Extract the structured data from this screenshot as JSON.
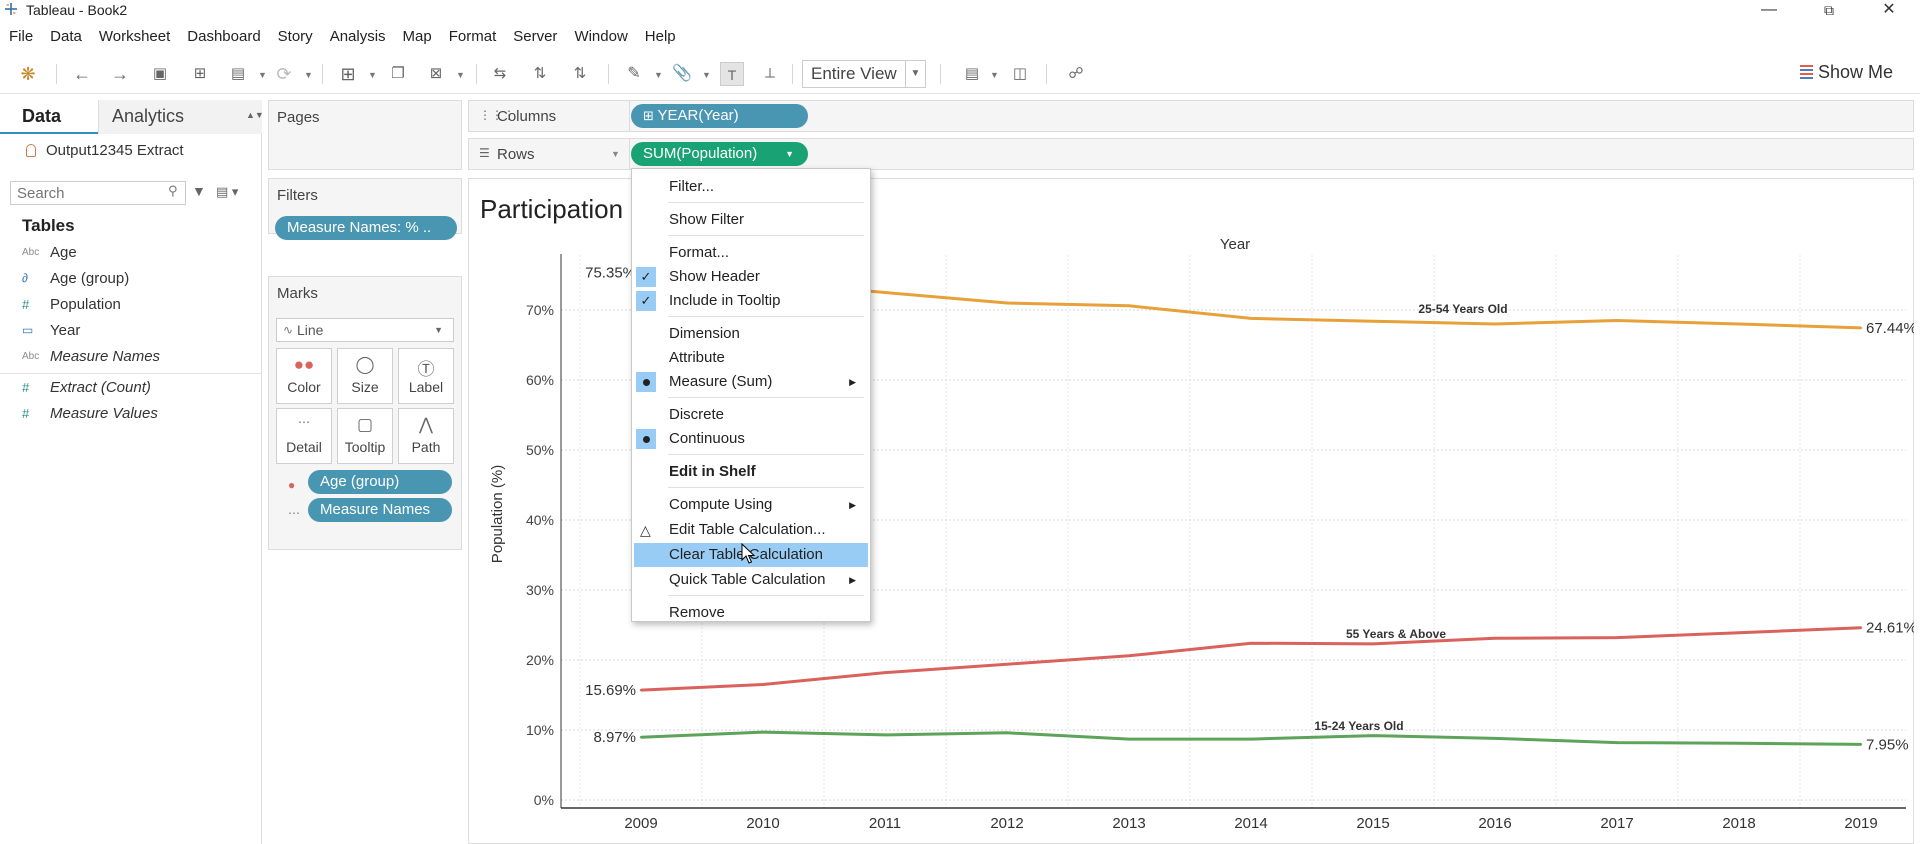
{
  "window": {
    "title": "Tableau - Book2",
    "min_icon": "minimize-icon",
    "max_icon": "restore-icon",
    "close_icon": "close-icon"
  },
  "menu": [
    "File",
    "Data",
    "Worksheet",
    "Dashboard",
    "Story",
    "Analysis",
    "Map",
    "Format",
    "Server",
    "Window",
    "Help"
  ],
  "toolbar": {
    "fit": "Entire View",
    "show_me": "Show Me"
  },
  "data_pane": {
    "tab_data": "Data",
    "tab_analytics": "Analytics",
    "datasource": "Output12345 Extract",
    "search_placeholder": "Search",
    "tables_header": "Tables",
    "fields": [
      {
        "icon": "Abc",
        "name": "Age",
        "italic": false
      },
      {
        "icon": "∂",
        "name": "Age (group)",
        "italic": false
      },
      {
        "icon": "#",
        "name": "Population",
        "italic": false
      },
      {
        "icon": "▭",
        "name": "Year",
        "italic": false
      },
      {
        "icon": "Abc",
        "name": "Measure Names",
        "italic": true
      },
      {
        "icon": "#",
        "name": "Extract (Count)",
        "italic": true
      },
      {
        "icon": "#",
        "name": "Measure Values",
        "italic": true
      }
    ]
  },
  "cards": {
    "pages": "Pages",
    "filters": "Filters",
    "filter_pill": "Measure Names: % ..",
    "marks": "Marks",
    "mark_type": "Line",
    "mark_buttons": [
      "Color",
      "Size",
      "Label",
      "Detail",
      "Tooltip",
      "Path"
    ],
    "mark_pills": [
      "Age (group)",
      "Measure Names"
    ]
  },
  "shelves": {
    "columns_label": "Columns",
    "columns_pill": "YEAR(Year)",
    "rows_label": "Rows",
    "rows_pill": "SUM(Population)"
  },
  "sheet": {
    "title": "Participation"
  },
  "context_menu": {
    "items": [
      {
        "label": "Filter...",
        "mark": ""
      },
      {
        "label": "Show Filter",
        "mark": ""
      },
      {
        "label": "Format...",
        "mark": ""
      },
      {
        "label": "Show Header",
        "mark": "check"
      },
      {
        "label": "Include in Tooltip",
        "mark": "check"
      },
      {
        "label": "Dimension",
        "mark": ""
      },
      {
        "label": "Attribute",
        "mark": ""
      },
      {
        "label": "Measure (Sum)",
        "mark": "dot",
        "submenu": true
      },
      {
        "label": "Discrete",
        "mark": ""
      },
      {
        "label": "Continuous",
        "mark": "dot"
      },
      {
        "label": "Edit in Shelf",
        "mark": "",
        "bold": true
      },
      {
        "label": "Compute Using",
        "mark": "",
        "submenu": true
      },
      {
        "label": "Edit Table Calculation...",
        "mark": "delta"
      },
      {
        "label": "Clear Table Calculation",
        "mark": "",
        "highlighted": true
      },
      {
        "label": "Quick Table Calculation",
        "mark": "",
        "submenu": true
      },
      {
        "label": "Remove",
        "mark": ""
      }
    ]
  },
  "chart_data": {
    "type": "line",
    "xlabel": "Year",
    "ylabel": "Population (%)",
    "x": [
      2009,
      2010,
      2011,
      2012,
      2013,
      2014,
      2015,
      2016,
      2017,
      2018,
      2019
    ],
    "ylim": [
      0,
      80
    ],
    "yticks": [
      "0%",
      "10%",
      "20%",
      "30%",
      "40%",
      "50%",
      "60%",
      "70%"
    ],
    "grid": true,
    "series": [
      {
        "name": "25-54 Years Old",
        "color": "#e8a03a",
        "values": [
          75.35,
          74.0,
          72.5,
          71.0,
          70.6,
          68.8,
          68.4,
          68.0,
          68.5,
          68.0,
          67.44
        ],
        "start_label": "75.35%",
        "end_label": "67.44%"
      },
      {
        "name": "55 Years & Above",
        "color": "#d9625c",
        "values": [
          15.69,
          16.5,
          18.2,
          19.4,
          20.6,
          22.4,
          22.3,
          23.1,
          23.2,
          23.9,
          24.61
        ],
        "start_label": "15.69%",
        "end_label": "24.61%"
      },
      {
        "name": "15-24 Years Old",
        "color": "#5da35a",
        "values": [
          8.97,
          9.7,
          9.3,
          9.6,
          8.7,
          8.7,
          9.2,
          8.8,
          8.2,
          8.1,
          7.95
        ],
        "start_label": "8.97%",
        "end_label": "7.95%"
      }
    ]
  }
}
